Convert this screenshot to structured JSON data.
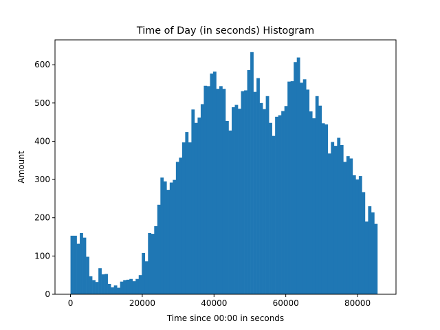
{
  "chart_data": {
    "type": "bar",
    "title": "Time of Day (in seconds) Histogram",
    "xlabel": "Time since 00:00 in seconds",
    "ylabel": "Amount",
    "xlim": [
      -4320,
      90720
    ],
    "ylim": [
      0,
      665
    ],
    "xticks": [
      0,
      20000,
      40000,
      60000,
      80000
    ],
    "yticks": [
      0,
      100,
      200,
      300,
      400,
      500,
      600
    ],
    "bin_start": 0,
    "bin_width": 864,
    "bar_color": "#1f77b4",
    "grid": false,
    "values": [
      153,
      153,
      132,
      160,
      148,
      98,
      47,
      37,
      32,
      68,
      52,
      53,
      27,
      18,
      23,
      17,
      33,
      37,
      38,
      40,
      34,
      40,
      50,
      108,
      86,
      160,
      158,
      178,
      234,
      305,
      295,
      273,
      292,
      299,
      346,
      357,
      397,
      424,
      397,
      483,
      448,
      462,
      497,
      545,
      544,
      577,
      582,
      537,
      544,
      537,
      453,
      428,
      489,
      495,
      485,
      531,
      533,
      586,
      633,
      529,
      565,
      500,
      484,
      518,
      448,
      414,
      464,
      468,
      479,
      492,
      556,
      557,
      607,
      619,
      553,
      562,
      535,
      478,
      460,
      518,
      493,
      447,
      444,
      368,
      398,
      388,
      409,
      390,
      346,
      361,
      355,
      311,
      300,
      309,
      267,
      190,
      230,
      214,
      184
    ]
  }
}
